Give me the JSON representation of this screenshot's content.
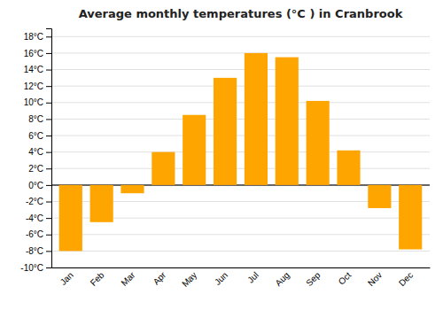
{
  "chart_data": {
    "type": "bar",
    "title": "Average monthly temperatures (°C ) in Cranbrook",
    "categories": [
      "Jan",
      "Feb",
      "Mar",
      "Apr",
      "May",
      "Jun",
      "Jul",
      "Aug",
      "Sep",
      "Oct",
      "Nov",
      "Dec"
    ],
    "values": [
      -8.0,
      -4.5,
      -1.0,
      4.0,
      8.5,
      13.0,
      16.0,
      15.5,
      10.2,
      4.2,
      -2.8,
      -7.8
    ],
    "color": "#FFA500",
    "ylim": [
      -10,
      19
    ],
    "yticks": [
      {
        "value": -10,
        "label": "-10°C"
      },
      {
        "value": -8,
        "label": "-8°C"
      },
      {
        "value": -6,
        "label": "-6°C"
      },
      {
        "value": -4,
        "label": "-4°C"
      },
      {
        "value": -2,
        "label": "-2°C"
      },
      {
        "value": 0,
        "label": "0°C"
      },
      {
        "value": 2,
        "label": "2°C"
      },
      {
        "value": 4,
        "label": "4°C"
      },
      {
        "value": 6,
        "label": "6°C"
      },
      {
        "value": 8,
        "label": "8°C"
      },
      {
        "value": 10,
        "label": "10°C"
      },
      {
        "value": 12,
        "label": "12°C"
      },
      {
        "value": 14,
        "label": "14°C"
      },
      {
        "value": 16,
        "label": "16°C"
      },
      {
        "value": 18,
        "label": "18°C"
      }
    ],
    "grid": true
  }
}
